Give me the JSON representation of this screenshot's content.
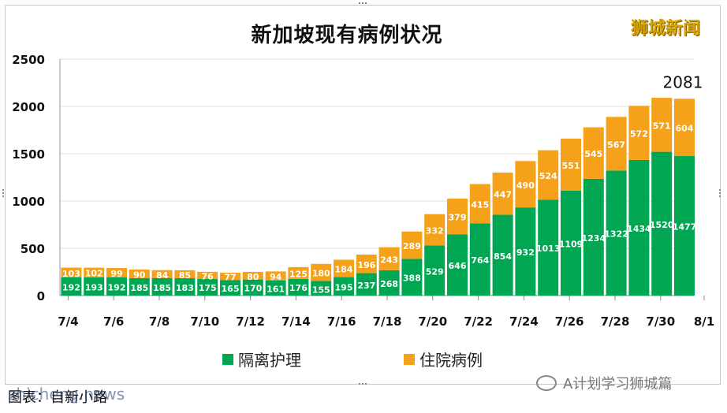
{
  "chart_data": {
    "type": "bar",
    "stacked": true,
    "title": "新加坡现有病例状况",
    "categories": [
      "7/4",
      "7/5",
      "7/6",
      "7/7",
      "7/8",
      "7/9",
      "7/10",
      "7/11",
      "7/12",
      "7/13",
      "7/14",
      "7/15",
      "7/16",
      "7/17",
      "7/18",
      "7/19",
      "7/20",
      "7/21",
      "7/22",
      "7/23",
      "7/24",
      "7/25",
      "7/26",
      "7/27",
      "7/28",
      "7/29",
      "7/30",
      "7/31"
    ],
    "x_tick_labels": [
      "7/4",
      "7/6",
      "7/8",
      "7/10",
      "7/12",
      "7/14",
      "7/16",
      "7/18",
      "7/20",
      "7/22",
      "7/24",
      "7/26",
      "7/28",
      "7/30",
      "8/1"
    ],
    "series": [
      {
        "name": "隔离护理",
        "color": "#00a651",
        "values": [
          192,
          193,
          192,
          185,
          185,
          183,
          175,
          165,
          170,
          161,
          176,
          155,
          195,
          237,
          268,
          388,
          529,
          646,
          764,
          854,
          932,
          1013,
          1109,
          1234,
          1322,
          1434,
          1520,
          1477
        ]
      },
      {
        "name": "住院病例",
        "color": "#f5a11a",
        "values": [
          103,
          102,
          99,
          90,
          84,
          85,
          76,
          77,
          80,
          94,
          125,
          180,
          184,
          196,
          243,
          289,
          332,
          379,
          415,
          447,
          490,
          524,
          551,
          545,
          567,
          572,
          571,
          604
        ]
      }
    ],
    "ylim": [
      0,
      2500
    ],
    "y_ticks": [
      "0",
      "500",
      "1000",
      "1500",
      "2000",
      "2500"
    ],
    "annotations": [
      {
        "category": "7/31",
        "text": "2081"
      }
    ],
    "grid": true,
    "legend": "bottom"
  },
  "brand": "狮城新闻",
  "footer": "图表：自新小路",
  "watermark": "shicheng.news",
  "wechat_label": "A计划学习狮城篇"
}
